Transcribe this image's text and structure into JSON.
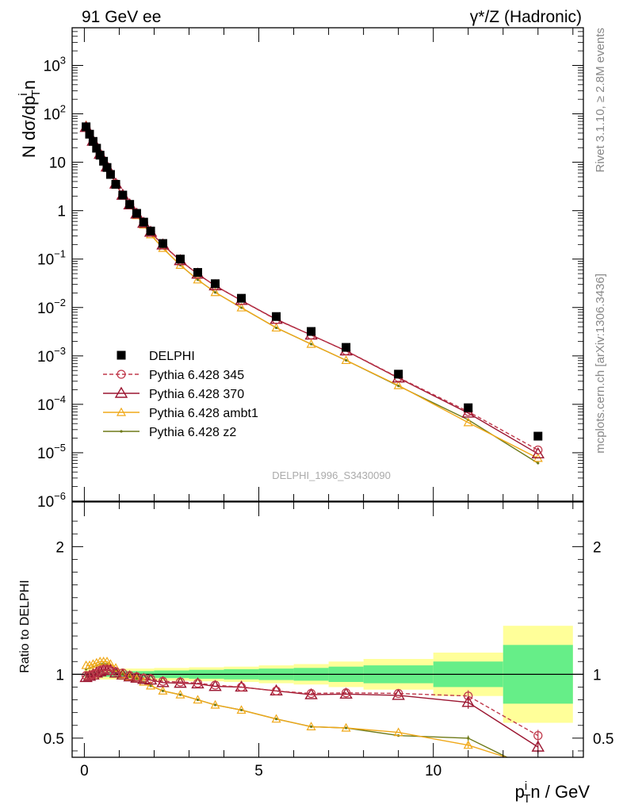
{
  "header": {
    "left_label": "91 GeV ee",
    "right_label": "γ*/Z (Hadronic)"
  },
  "side_labels": {
    "rivet": "Rivet 3.1.10, ≥ 2.8M events",
    "mcplots": "mcplots.cern.ch [arXiv:1306.3436]"
  },
  "watermark": "DELPHI_1996_S3430090",
  "colors": {
    "data": "#000000",
    "p345": "#c0394b",
    "p370": "#9b1530",
    "ambt1": "#f0a818",
    "z2": "#6e7a18",
    "band_stat": "#66ee88",
    "band_total": "#ffff99"
  },
  "chart_data": [
    {
      "type": "line",
      "panel": "main",
      "ylabel_main": "N dσ/dp",
      "ylabel_sup": "i",
      "ylabel_sub": "T",
      "ylabel_tail": "n",
      "y_scale": "log",
      "ylim": [
        1e-06,
        6000
      ],
      "xlim": [
        -0.35,
        14.3
      ],
      "y_ticks": [
        {
          "v": 1000,
          "base": "10",
          "exp": "3"
        },
        {
          "v": 100,
          "base": "10",
          "exp": "2"
        },
        {
          "v": 10,
          "base": "10",
          "exp": ""
        },
        {
          "v": 1,
          "base": "1",
          "exp": ""
        },
        {
          "v": 0.1,
          "base": "10",
          "exp": "−1"
        },
        {
          "v": 0.01,
          "base": "10",
          "exp": "−2"
        },
        {
          "v": 0.001,
          "base": "10",
          "exp": "−3"
        },
        {
          "v": 0.0001,
          "base": "10",
          "exp": "−4"
        },
        {
          "v": 1e-05,
          "base": "10",
          "exp": "−5"
        },
        {
          "v": 1e-06,
          "base": "10",
          "exp": "−6"
        }
      ],
      "x": [
        0.05,
        0.15,
        0.25,
        0.35,
        0.45,
        0.55,
        0.65,
        0.75,
        0.9,
        1.1,
        1.3,
        1.5,
        1.7,
        1.9,
        2.25,
        2.75,
        3.25,
        3.75,
        4.5,
        5.5,
        6.5,
        7.5,
        9.0,
        11.0,
        13.0
      ],
      "series": [
        {
          "name": "DELPHI",
          "key": "data",
          "marker": "square",
          "values": [
            54,
            38,
            27,
            19.5,
            14,
            10.5,
            7.8,
            5.6,
            3.5,
            2.1,
            1.35,
            0.88,
            0.58,
            0.38,
            0.21,
            0.1,
            0.053,
            0.031,
            0.0155,
            0.0065,
            0.0032,
            0.0015,
            0.00042,
            8.5e-05,
            2.2e-05
          ]
        },
        {
          "name": "Pythia 6.428 345",
          "key": "p345",
          "marker": "circle",
          "values": [
            52,
            37,
            27,
            19.8,
            14.6,
            10.9,
            8.0,
            5.8,
            3.6,
            2.12,
            1.34,
            0.86,
            0.56,
            0.366,
            0.198,
            0.094,
            0.049,
            0.0282,
            0.0139,
            0.0056,
            0.0027,
            0.00128,
            0.000358,
            7.1e-05,
            1.14e-05
          ]
        },
        {
          "name": "Pythia 6.428 370",
          "key": "p370",
          "marker": "triangle",
          "values": [
            52.5,
            37.4,
            27.3,
            19.9,
            14.6,
            10.9,
            8.0,
            5.8,
            3.55,
            2.09,
            1.32,
            0.85,
            0.55,
            0.36,
            0.196,
            0.093,
            0.049,
            0.0281,
            0.014,
            0.0057,
            0.0027,
            0.00127,
            0.00035,
            6.6e-05,
            9.5e-06
          ]
        },
        {
          "name": "Pythia 6.428 ambt1",
          "key": "ambt1",
          "marker": "small-triangle",
          "values": [
            58,
            41.4,
            29.5,
            21.4,
            15.6,
            11.6,
            8.5,
            6.0,
            3.6,
            2.08,
            1.28,
            0.8,
            0.51,
            0.32,
            0.168,
            0.075,
            0.0374,
            0.0205,
            0.0099,
            0.0038,
            0.00175,
            0.00081,
            0.000245,
            4.2e-05,
            7.7e-06
          ]
        },
        {
          "name": "Pythia 6.428 z2",
          "key": "z2",
          "marker": "dot",
          "values": [
            56,
            40,
            28.7,
            20.9,
            15.3,
            11.4,
            8.4,
            5.95,
            3.6,
            2.08,
            1.28,
            0.8,
            0.51,
            0.32,
            0.168,
            0.075,
            0.0374,
            0.0205,
            0.0099,
            0.0038,
            0.00175,
            0.00081,
            0.00024,
            4.8e-05,
            6.1e-06
          ]
        }
      ]
    },
    {
      "type": "line",
      "panel": "ratio",
      "ylabel": "Ratio to DELPHI",
      "xlabel_main": "p",
      "xlabel_sup": "i",
      "xlabel_sub": "T",
      "xlabel_tail": "n / GeV",
      "ylim": [
        0.35,
        2.35
      ],
      "xlim": [
        -0.35,
        14.3
      ],
      "y_ticks": [
        0.5,
        1,
        2
      ],
      "y_tick_labels": [
        "0.5",
        "1",
        "2"
      ],
      "x_ticks": [
        0,
        5,
        10
      ],
      "x_tick_labels": [
        "0",
        "5",
        "10"
      ],
      "bands": [
        {
          "x0": 0.0,
          "x1": 0.5,
          "stat": [
            0.98,
            1.02
          ],
          "total": [
            0.96,
            1.04
          ]
        },
        {
          "x0": 0.5,
          "x1": 1.0,
          "stat": [
            0.98,
            1.02
          ],
          "total": [
            0.96,
            1.04
          ]
        },
        {
          "x0": 1.0,
          "x1": 2.0,
          "stat": [
            0.975,
            1.025
          ],
          "total": [
            0.955,
            1.045
          ]
        },
        {
          "x0": 2.0,
          "x1": 3.0,
          "stat": [
            0.97,
            1.03
          ],
          "total": [
            0.95,
            1.05
          ]
        },
        {
          "x0": 3.0,
          "x1": 4.0,
          "stat": [
            0.965,
            1.035
          ],
          "total": [
            0.945,
            1.055
          ]
        },
        {
          "x0": 4.0,
          "x1": 5.0,
          "stat": [
            0.96,
            1.04
          ],
          "total": [
            0.94,
            1.06
          ]
        },
        {
          "x0": 5.0,
          "x1": 6.0,
          "stat": [
            0.955,
            1.045
          ],
          "total": [
            0.93,
            1.07
          ]
        },
        {
          "x0": 6.0,
          "x1": 7.0,
          "stat": [
            0.95,
            1.05
          ],
          "total": [
            0.92,
            1.08
          ]
        },
        {
          "x0": 7.0,
          "x1": 8.0,
          "stat": [
            0.94,
            1.06
          ],
          "total": [
            0.9,
            1.1
          ]
        },
        {
          "x0": 8.0,
          "x1": 10.0,
          "stat": [
            0.93,
            1.07
          ],
          "total": [
            0.88,
            1.12
          ]
        },
        {
          "x0": 10.0,
          "x1": 12.0,
          "stat": [
            0.9,
            1.1
          ],
          "total": [
            0.83,
            1.17
          ]
        },
        {
          "x0": 12.0,
          "x1": 14.0,
          "stat": [
            0.77,
            1.23
          ],
          "total": [
            0.62,
            1.38
          ]
        }
      ],
      "x": [
        0.05,
        0.15,
        0.25,
        0.35,
        0.45,
        0.55,
        0.65,
        0.75,
        0.9,
        1.1,
        1.3,
        1.5,
        1.7,
        1.9,
        2.25,
        2.75,
        3.25,
        3.75,
        4.5,
        5.5,
        6.5,
        7.5,
        9.0,
        11.0,
        13.0
      ],
      "series": [
        {
          "name": "Pythia 6.428 345",
          "key": "p345",
          "marker": "circle",
          "values": [
            0.99,
            0.99,
            1.0,
            1.01,
            1.03,
            1.04,
            1.04,
            1.03,
            1.02,
            1.01,
            0.99,
            0.98,
            0.97,
            0.965,
            0.945,
            0.94,
            0.93,
            0.915,
            0.9,
            0.87,
            0.85,
            0.855,
            0.85,
            0.83,
            0.52
          ]
        },
        {
          "name": "Pythia 6.428 370",
          "key": "p370",
          "marker": "triangle",
          "values": [
            0.975,
            0.985,
            0.995,
            1.01,
            1.02,
            1.03,
            1.03,
            1.03,
            1.01,
            0.995,
            0.98,
            0.97,
            0.96,
            0.955,
            0.935,
            0.93,
            0.925,
            0.905,
            0.9,
            0.87,
            0.84,
            0.845,
            0.835,
            0.78,
            0.43
          ]
        },
        {
          "name": "Pythia 6.428 ambt1",
          "key": "ambt1",
          "marker": "small-triangle",
          "values": [
            1.07,
            1.07,
            1.08,
            1.09,
            1.1,
            1.1,
            1.1,
            1.08,
            1.05,
            1.0,
            0.98,
            0.965,
            0.94,
            0.91,
            0.87,
            0.84,
            0.8,
            0.76,
            0.72,
            0.65,
            0.59,
            0.58,
            0.545,
            0.445,
            0.27
          ]
        },
        {
          "name": "Pythia 6.428 z2",
          "key": "z2",
          "marker": "dot",
          "values": [
            1.04,
            1.05,
            1.06,
            1.07,
            1.08,
            1.085,
            1.08,
            1.06,
            1.03,
            1.0,
            0.98,
            0.965,
            0.94,
            0.91,
            0.87,
            0.84,
            0.8,
            0.76,
            0.72,
            0.65,
            0.59,
            0.58,
            0.52,
            0.5,
            0.23
          ]
        }
      ]
    }
  ]
}
